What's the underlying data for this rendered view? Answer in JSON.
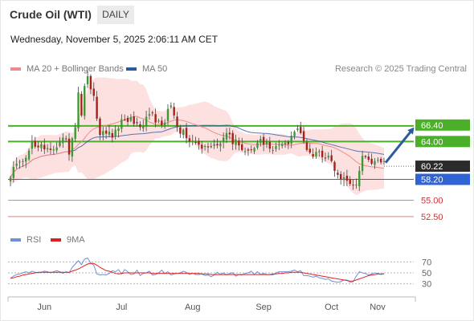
{
  "header": {
    "instrument": "Crude Oil (WTI)",
    "timeframe": "DAILY",
    "datetime": "Wednesday, November 5, 2025 2:06:11 AM CET"
  },
  "legend": {
    "ma20": {
      "label": "MA 20 + Bollinger Bands",
      "color": "#f08a8a"
    },
    "ma50": {
      "label": "MA 50",
      "color": "#2a5aa0"
    },
    "research": "Research © 2025 Trading Central"
  },
  "rsi_legend": {
    "rsi": {
      "label": "RSI",
      "color": "#6f8fd6"
    },
    "ma": {
      "label": "9MA",
      "color": "#e02020"
    }
  },
  "colors": {
    "up": "#3c9a33",
    "down": "#a8201a",
    "resistance": "#4caf2a",
    "support": "#2f63d6",
    "target": "#2a5aa0"
  },
  "chart_data": [
    {
      "type": "candlestick",
      "title": "Crude Oil (WTI)",
      "timeframe": "DAILY",
      "x_months": [
        "Jun",
        "Jul",
        "Aug",
        "Sep",
        "Oct",
        "Nov"
      ],
      "y_tick_labels": [
        "66.40",
        "64.00",
        "60.22",
        "58.20",
        "55.00",
        "52.50"
      ],
      "last_price": 60.22,
      "levels": [
        {
          "value": 66.4,
          "label": "66.40",
          "kind": "resistance"
        },
        {
          "value": 64.0,
          "label": "64.00",
          "kind": "resistance"
        },
        {
          "value": 58.2,
          "label": "58.20",
          "kind": "pivot"
        },
        {
          "value": 55.0,
          "label": "55.00",
          "kind": "support"
        },
        {
          "value": 52.5,
          "label": "52.50",
          "kind": "support"
        }
      ],
      "ylim": [
        51.5,
        74.0
      ],
      "forecast_target": 66.4,
      "overlays": [
        "MA 20 + Bollinger Bands",
        "MA 50"
      ],
      "closes": [
        58.5,
        60.1,
        60.6,
        60.9,
        61.0,
        61.5,
        62.6,
        64.0,
        63.2,
        63.1,
        63.6,
        62.8,
        63.0,
        62.7,
        62.8,
        63.1,
        63.9,
        64.6,
        64.4,
        62.0,
        64.5,
        66.2,
        71.5,
        68.0,
        72.5,
        74.0,
        72.0,
        71.0,
        67.5,
        65.0,
        65.6,
        65.2,
        65.5,
        64.6,
        65.8,
        66.0,
        67.4,
        67.4,
        67.0,
        67.7,
        66.7,
        66.8,
        66.2,
        66.4,
        67.8,
        68.2,
        68.4,
        66.9,
        67.2,
        66.5,
        66.9,
        69.0,
        69.5,
        68.0,
        66.3,
        65.2,
        65.8,
        64.5,
        64.0,
        64.1,
        63.8,
        63.5,
        62.9,
        63.3,
        63.1,
        63.2,
        63.6,
        63.4,
        63.7,
        64.6,
        65.3,
        65.1,
        63.6,
        64.3,
        63.4,
        62.7,
        62.5,
        62.6,
        62.7,
        63.0,
        63.8,
        64.4,
        63.5,
        63.9,
        62.9,
        62.7,
        63.3,
        63.5,
        63.6,
        63.8,
        63.6,
        64.9,
        65.5,
        66.0,
        65.3,
        64.1,
        62.7,
        62.3,
        61.7,
        62.4,
        62.5,
        61.6,
        61.5,
        61.8,
        61.0,
        59.5,
        58.9,
        58.2,
        58.5,
        58.0,
        57.5,
        57.3,
        57.4,
        59.5,
        61.8,
        61.6,
        61.2,
        60.6,
        61.0,
        61.2,
        60.8,
        61.0
      ],
      "rsi": {
        "axis_ticks": [
          70,
          50,
          30
        ],
        "ylim": [
          15,
          85
        ],
        "rsi_values": [
          40,
          44,
          47,
          48,
          50,
          52,
          50,
          53,
          51,
          50,
          51,
          53,
          52,
          50,
          52,
          54,
          52,
          49,
          52,
          50,
          60,
          66,
          72,
          65,
          75,
          77,
          68,
          64,
          48,
          46,
          47,
          46,
          49,
          54,
          52,
          56,
          48,
          56,
          52,
          47,
          48,
          55,
          45,
          49,
          50,
          53,
          46,
          47,
          50,
          55,
          49,
          52,
          46,
          48,
          49,
          50,
          53,
          51,
          47,
          49,
          47,
          47,
          48,
          45,
          46,
          43,
          46,
          51,
          47,
          50,
          46,
          49,
          50,
          44,
          47,
          46,
          49,
          50,
          53,
          47,
          52,
          47,
          49,
          47,
          47,
          46,
          50,
          52,
          52,
          52,
          52,
          53,
          55,
          52,
          54,
          45,
          45,
          44,
          42,
          44,
          41,
          40,
          38,
          39,
          35,
          34,
          33,
          34,
          37,
          37,
          33,
          34,
          44,
          52,
          50,
          49,
          46,
          48,
          50,
          49,
          47,
          49
        ],
        "ma_values": [
          40,
          41,
          43,
          44,
          46,
          47,
          48,
          49,
          50,
          51,
          51,
          51,
          51,
          51,
          51,
          51,
          51,
          51,
          51,
          51,
          53,
          55,
          57,
          60,
          63,
          66,
          67,
          67,
          64,
          60,
          57,
          54,
          53,
          51,
          49,
          48,
          49,
          50,
          50,
          50,
          50,
          50,
          50,
          50,
          50,
          50,
          49,
          49,
          49,
          49,
          49,
          49,
          49,
          49,
          49,
          49,
          49,
          49,
          49,
          49,
          49,
          49,
          48,
          48,
          48,
          47,
          47,
          47,
          47,
          47,
          47,
          47,
          47,
          47,
          47,
          47,
          47,
          47,
          47,
          47,
          47,
          47,
          47,
          47,
          47,
          48,
          48,
          49,
          49,
          50,
          50,
          51,
          51,
          51,
          51,
          50,
          49,
          48,
          47,
          46,
          45,
          44,
          43,
          42,
          41,
          40,
          39,
          38,
          37,
          36,
          35,
          35,
          37,
          39,
          41,
          43,
          45,
          46,
          47,
          48,
          48,
          48
        ]
      }
    }
  ]
}
